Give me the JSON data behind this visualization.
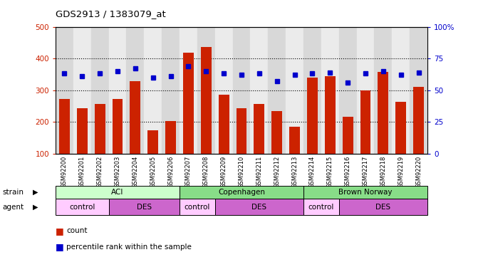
{
  "title": "GDS2913 / 1383079_at",
  "samples": [
    "GSM92200",
    "GSM92201",
    "GSM92202",
    "GSM92203",
    "GSM92204",
    "GSM92205",
    "GSM92206",
    "GSM92207",
    "GSM92208",
    "GSM92209",
    "GSM92210",
    "GSM92211",
    "GSM92212",
    "GSM92213",
    "GSM92214",
    "GSM92215",
    "GSM92216",
    "GSM92217",
    "GSM92218",
    "GSM92219",
    "GSM92220"
  ],
  "counts": [
    272,
    244,
    256,
    272,
    328,
    174,
    202,
    418,
    437,
    285,
    244,
    256,
    233,
    185,
    340,
    345,
    215,
    300,
    358,
    262,
    310
  ],
  "percentiles": [
    63,
    61,
    63,
    65,
    67,
    60,
    61,
    69,
    65,
    63,
    62,
    63,
    57,
    62,
    63,
    64,
    56,
    63,
    65,
    62,
    64
  ],
  "ylim_left": [
    100,
    500
  ],
  "ylim_right": [
    0,
    100
  ],
  "yticks_left": [
    100,
    200,
    300,
    400,
    500
  ],
  "yticks_right": [
    0,
    25,
    50,
    75,
    100
  ],
  "bar_color": "#cc2200",
  "dot_color": "#0000cc",
  "strain_labels": [
    "ACI",
    "Copenhagen",
    "Brown Norway"
  ],
  "strain_ranges": [
    [
      0,
      6
    ],
    [
      7,
      13
    ],
    [
      14,
      20
    ]
  ],
  "strain_bg_colors": [
    "#ccffcc",
    "#88dd88",
    "#88dd88"
  ],
  "agent_labels": [
    "control",
    "DES",
    "control",
    "DES",
    "control",
    "DES"
  ],
  "agent_ranges": [
    [
      0,
      2
    ],
    [
      3,
      6
    ],
    [
      7,
      8
    ],
    [
      9,
      13
    ],
    [
      14,
      15
    ],
    [
      16,
      20
    ]
  ],
  "agent_bg_colors": [
    "#ffccff",
    "#cc66cc",
    "#ffccff",
    "#cc66cc",
    "#ffccff",
    "#cc66cc"
  ],
  "axis_color_left": "#cc2200",
  "axis_color_right": "#0000cc",
  "legend_count_color": "#cc2200",
  "legend_pct_color": "#0000cc"
}
